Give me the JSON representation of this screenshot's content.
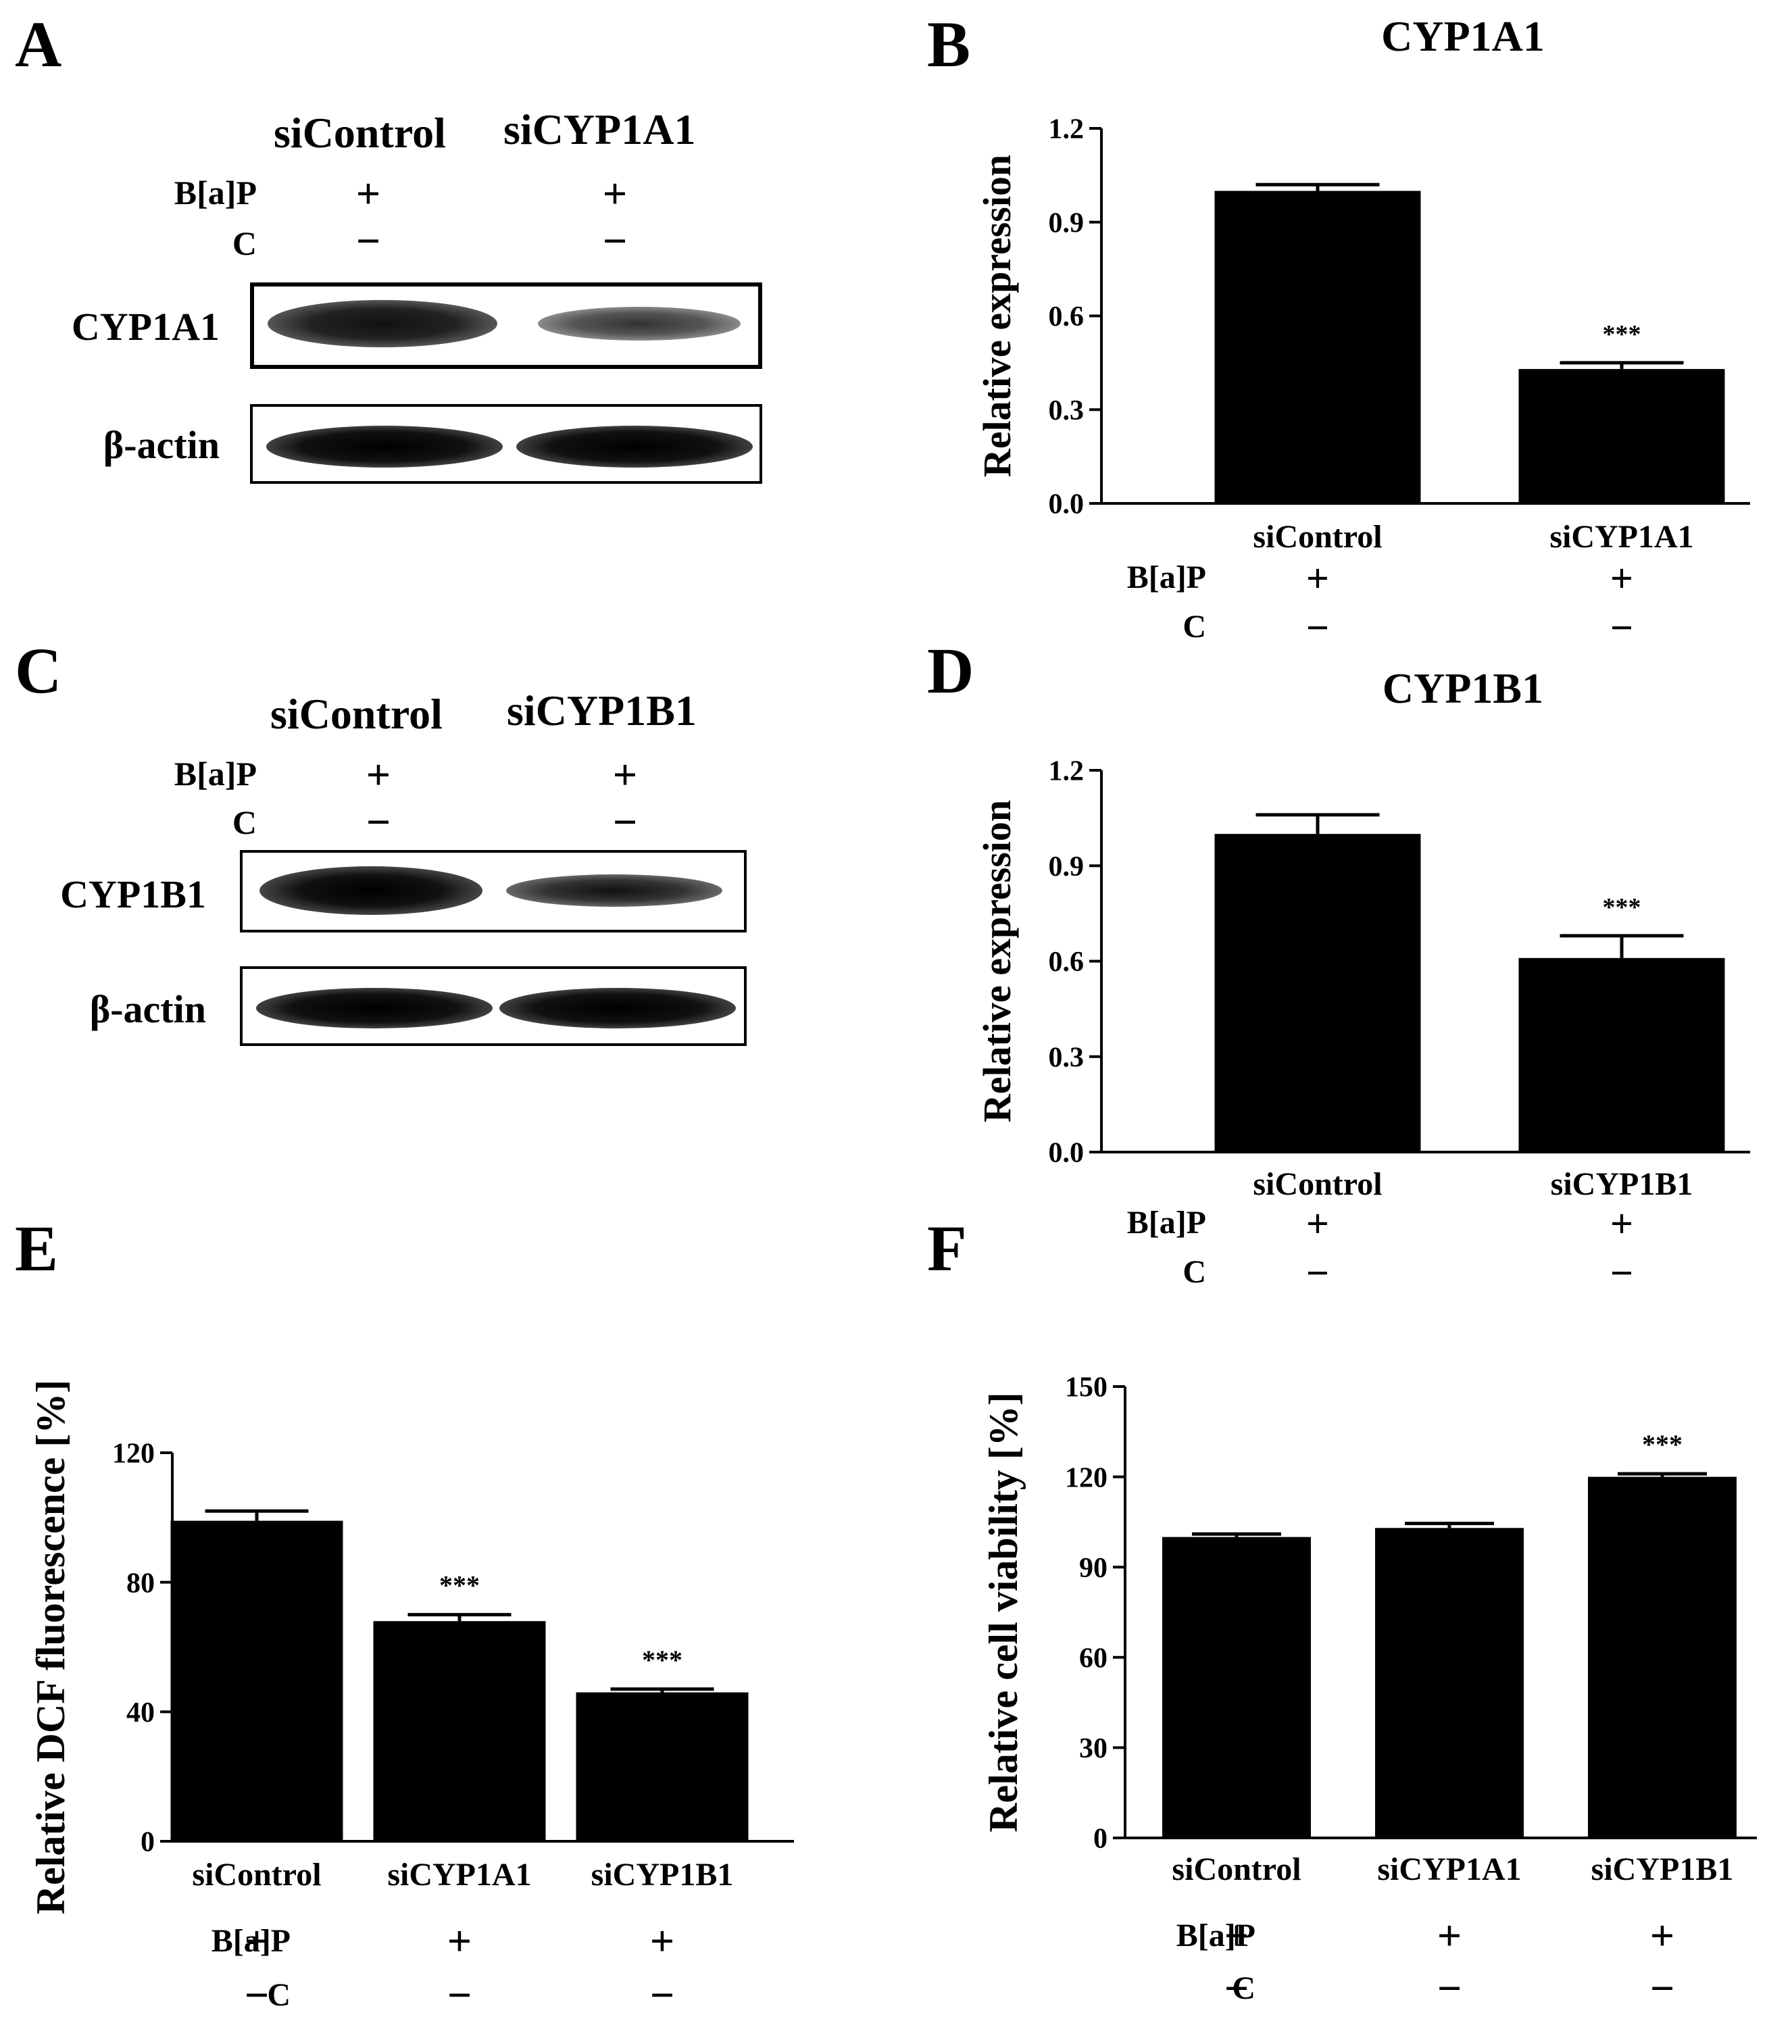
{
  "panels": {
    "A": {
      "letter": "A",
      "title_left": "siControl",
      "title_right": "siCYP1A1",
      "row_bap": "B[a]P",
      "row_c": "C",
      "plus": "+",
      "minus": "−",
      "band1_label": "CYP1A1",
      "band2_label": "β-actin"
    },
    "B": {
      "letter": "B"
    },
    "C": {
      "letter": "C",
      "title_left": "siControl",
      "title_right": "siCYP1B1",
      "row_bap": "B[a]P",
      "row_c": "C",
      "plus": "+",
      "minus": "−",
      "band1_label": "CYP1B1",
      "band2_label": "β-actin"
    },
    "D": {
      "letter": "D"
    },
    "E": {
      "letter": "E"
    },
    "F": {
      "letter": "F"
    }
  },
  "chart_data": [
    {
      "id": "B",
      "type": "bar",
      "title": "CYP1A1",
      "ylabel": "Relative expression",
      "xlabel": "",
      "categories": [
        "siControl",
        "siCYP1A1"
      ],
      "values": [
        1.0,
        0.43
      ],
      "errors": [
        0.02,
        0.02
      ],
      "significance": [
        "",
        "***"
      ],
      "ylim": [
        0,
        1.2
      ],
      "yticks": [
        "0.0",
        "0.3",
        "0.6",
        "0.9",
        "1.2"
      ],
      "treatment_rows": [
        {
          "label": "B[a]P",
          "signs": [
            "+",
            "+"
          ]
        },
        {
          "label": "C",
          "signs": [
            "−",
            "−"
          ]
        }
      ],
      "bar_color": "#000000",
      "grid": false
    },
    {
      "id": "D",
      "type": "bar",
      "title": "CYP1B1",
      "ylabel": "Relative expression",
      "xlabel": "",
      "categories": [
        "siControl",
        "siCYP1B1"
      ],
      "values": [
        1.0,
        0.61
      ],
      "errors": [
        0.06,
        0.07
      ],
      "significance": [
        "",
        "***"
      ],
      "ylim": [
        0,
        1.2
      ],
      "yticks": [
        "0.0",
        "0.3",
        "0.6",
        "0.9",
        "1.2"
      ],
      "treatment_rows": [
        {
          "label": "B[a]P",
          "signs": [
            "+",
            "+"
          ]
        },
        {
          "label": "C",
          "signs": [
            "−",
            "−"
          ]
        }
      ],
      "bar_color": "#000000",
      "grid": false
    },
    {
      "id": "E",
      "type": "bar",
      "title": "",
      "ylabel": "Relative DCF fluorescence [%]",
      "xlabel": "",
      "categories": [
        "siControl",
        "siCYP1A1",
        "siCYP1B1"
      ],
      "values": [
        99,
        68,
        46
      ],
      "errors": [
        3,
        2,
        1
      ],
      "significance": [
        "",
        "***",
        "***"
      ],
      "ylim": [
        0,
        120
      ],
      "yticks": [
        "0",
        "40",
        "80",
        "120"
      ],
      "treatment_rows": [
        {
          "label": "B[a]P",
          "signs": [
            "+",
            "+",
            "+"
          ]
        },
        {
          "label": "C",
          "signs": [
            "−",
            "−",
            "−"
          ]
        }
      ],
      "bar_color": "#000000",
      "grid": false
    },
    {
      "id": "F",
      "type": "bar",
      "title": "",
      "ylabel": "Relative cell viability [%]",
      "xlabel": "",
      "categories": [
        "siControl",
        "siCYP1A1",
        "siCYP1B1"
      ],
      "values": [
        100,
        103,
        120
      ],
      "errors": [
        1,
        1.5,
        1
      ],
      "significance": [
        "",
        "",
        "***"
      ],
      "ylim": [
        0,
        150
      ],
      "yticks": [
        "0",
        "30",
        "60",
        "90",
        "120",
        "150"
      ],
      "treatment_rows": [
        {
          "label": "B[a]P",
          "signs": [
            "+",
            "+",
            "+"
          ]
        },
        {
          "label": "C",
          "signs": [
            "−",
            "−",
            "−"
          ]
        }
      ],
      "bar_color": "#000000",
      "grid": false
    }
  ]
}
